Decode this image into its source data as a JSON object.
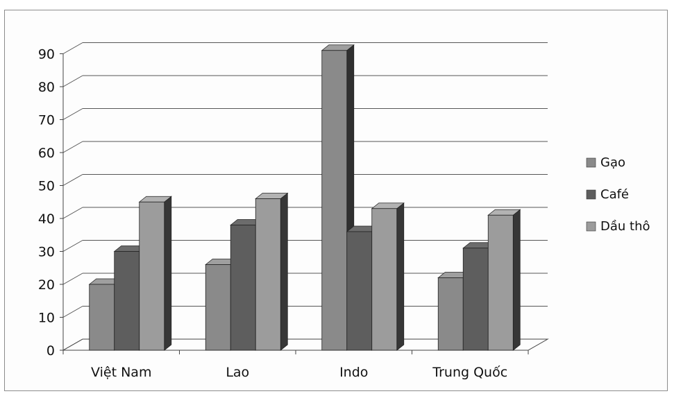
{
  "chart_data": {
    "type": "bar",
    "categories": [
      "Việt Nam",
      "Lao",
      "Indo",
      "Trung Quốc"
    ],
    "series": [
      {
        "name": "Gạo",
        "values": [
          20,
          26,
          91,
          22
        ],
        "color": "#8a8a8a"
      },
      {
        "name": "Café",
        "values": [
          30,
          38,
          36,
          31
        ],
        "color": "#5e5e5e"
      },
      {
        "name": "Dầu thô",
        "values": [
          45,
          46,
          43,
          41
        ],
        "color": "#9c9c9c"
      }
    ],
    "yticks": [
      "0",
      "10",
      "20",
      "30",
      "40",
      "50",
      "60",
      "70",
      "80",
      "90"
    ],
    "ylim": [
      0,
      90
    ],
    "grid": true,
    "legend_position": "right",
    "style": "3d-column"
  }
}
